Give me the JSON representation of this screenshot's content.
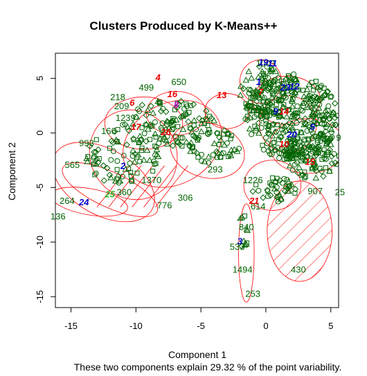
{
  "chart_data": {
    "type": "scatter",
    "title": "Clusters Produced by K-Means++",
    "xlabel": "Component 1",
    "ylabel": "Component 2",
    "subtitle": "These two components explain 29.32 % of the point variability.",
    "xlim": [
      -16.2,
      5.6
    ],
    "ylim": [
      -16.0,
      7.3
    ],
    "x_ticks": [
      -15,
      -10,
      -5,
      0,
      5
    ],
    "y_ticks": [
      -15,
      -10,
      -5,
      0,
      5
    ],
    "point_color": "#006400",
    "ellipse_color": "#ff0000",
    "point_labels": [
      {
        "label": "650",
        "x": -6.7,
        "y": 4.7
      },
      {
        "label": "499",
        "x": -9.2,
        "y": 4.2
      },
      {
        "label": "218",
        "x": -11.4,
        "y": 3.3
      },
      {
        "label": "209",
        "x": -11.1,
        "y": 2.5
      },
      {
        "label": "1239",
        "x": -10.8,
        "y": 1.4
      },
      {
        "label": "993",
        "x": -13.8,
        "y": -0.9
      },
      {
        "label": "166",
        "x": -12.1,
        "y": 0.2
      },
      {
        "label": "565",
        "x": -14.9,
        "y": -2.9
      },
      {
        "label": "264",
        "x": -15.3,
        "y": -6.2
      },
      {
        "label": "136",
        "x": -16.0,
        "y": -7.6
      },
      {
        "label": "360",
        "x": -10.9,
        "y": -5.4
      },
      {
        "label": "1370",
        "x": -8.8,
        "y": -4.3
      },
      {
        "label": "776",
        "x": -7.8,
        "y": -6.6
      },
      {
        "label": "306",
        "x": -6.2,
        "y": -5.9
      },
      {
        "label": "293",
        "x": -3.9,
        "y": -3.3
      },
      {
        "label": "1226",
        "x": -1.0,
        "y": -4.3
      },
      {
        "label": "614",
        "x": -0.6,
        "y": -6.7
      },
      {
        "label": "840",
        "x": -1.5,
        "y": -8.6
      },
      {
        "label": "533",
        "x": -2.2,
        "y": -10.4
      },
      {
        "label": "1494",
        "x": -1.8,
        "y": -12.5
      },
      {
        "label": "253",
        "x": -1.0,
        "y": -14.7
      },
      {
        "label": "430",
        "x": 2.5,
        "y": -12.5
      },
      {
        "label": "1003",
        "x": 0.0,
        "y": 6.4
      },
      {
        "label": "907",
        "x": 3.8,
        "y": -5.3
      },
      {
        "label": "25",
        "x": 5.7,
        "y": -5.4
      },
      {
        "label": "9",
        "x": 5.6,
        "y": -0.4
      }
    ],
    "clusters": [
      {
        "id": "1",
        "x": -0.55,
        "y": 4.7,
        "color": "#0000cc"
      },
      {
        "id": "2",
        "x": -11.0,
        "y": -3.0,
        "color": "#0000cc"
      },
      {
        "id": "3",
        "x": -2.0,
        "y": -9.9,
        "color": "#0000cc"
      },
      {
        "id": "4",
        "x": -8.3,
        "y": 5.1,
        "color": "#ee0000"
      },
      {
        "id": "5",
        "x": 3.6,
        "y": 0.6,
        "color": "#0000cc"
      },
      {
        "id": "6",
        "x": -10.3,
        "y": 2.8,
        "color": "#ee0000"
      },
      {
        "id": "7",
        "x": -0.4,
        "y": 3.8,
        "color": "#ee0000"
      },
      {
        "id": "9",
        "x": 0.75,
        "y": 2.0,
        "color": "#0000cc"
      },
      {
        "id": "10",
        "x": 1.4,
        "y": -1.0,
        "color": "#ee0000"
      },
      {
        "id": "11",
        "x": 0.5,
        "y": 6.4,
        "color": "#0000cc"
      },
      {
        "id": "12",
        "x": 2.2,
        "y": 4.3,
        "color": "#0000cc"
      },
      {
        "id": "13",
        "x": -3.4,
        "y": 3.5,
        "color": "#ee0000"
      },
      {
        "id": "14",
        "x": 1.4,
        "y": 2.0,
        "color": "#ee0000"
      },
      {
        "id": "15",
        "x": 3.4,
        "y": -2.6,
        "color": "#ee0000"
      },
      {
        "id": "16",
        "x": -7.2,
        "y": 3.6,
        "color": "#ee0000"
      },
      {
        "id": "17",
        "x": -10.0,
        "y": 0.6,
        "color": "#ee0000"
      },
      {
        "id": "19",
        "x": -0.2,
        "y": 6.5,
        "color": "#0000cc"
      },
      {
        "id": "20",
        "x": 2.0,
        "y": -0.1,
        "color": "#0000cc"
      },
      {
        "id": "21",
        "x": -0.9,
        "y": -6.2,
        "color": "#ee0000"
      },
      {
        "id": "23",
        "x": 1.5,
        "y": 4.2,
        "color": "#0000cc"
      },
      {
        "id": "24",
        "x": -14.0,
        "y": -6.3,
        "color": "#0000cc"
      },
      {
        "id": "25",
        "x": -12.0,
        "y": -5.6,
        "color": "#22bb22"
      },
      {
        "id": "26",
        "x": -7.7,
        "y": 0.1,
        "color": "#ee0000"
      },
      {
        "id": "8",
        "x": -6.9,
        "y": 2.6,
        "color": "#cc00cc"
      }
    ]
  }
}
